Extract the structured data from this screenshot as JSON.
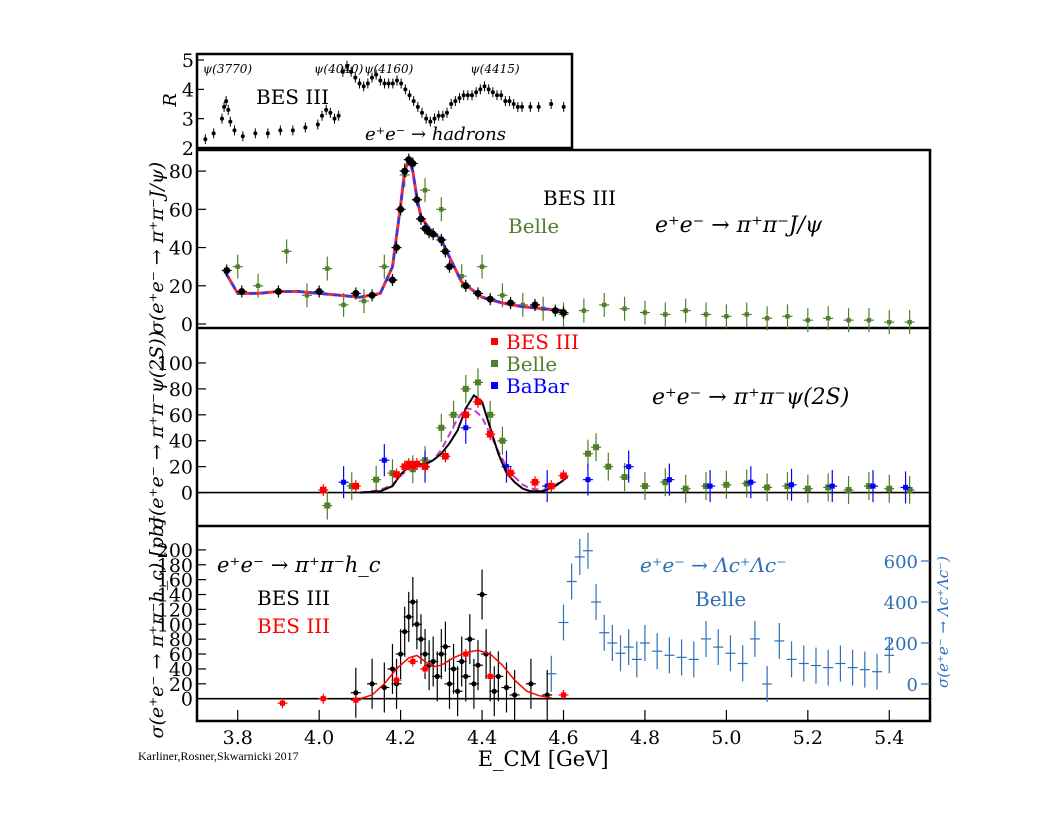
{
  "chart_data": [
    {
      "type": "scatter",
      "panel": "inset-R",
      "ylabel": "R",
      "ylim": [
        2,
        5
      ],
      "yticks": [
        2,
        3,
        4,
        5
      ],
      "xlim": [
        3.7,
        4.6
      ],
      "annotations": [
        "BES III",
        "e⁺e⁻ → hadrons"
      ],
      "resonances": [
        {
          "label": "ψ(3770)",
          "x": 3.773
        },
        {
          "label": "ψ(4040)",
          "x": 4.04
        },
        {
          "label": "ψ(4160)",
          "x": 4.16
        },
        {
          "label": "ψ(4415)",
          "x": 4.415
        }
      ],
      "series": [
        {
          "name": "BES III",
          "color": "#000000",
          "x": [
            3.72,
            3.74,
            3.76,
            3.765,
            3.77,
            3.775,
            3.78,
            3.79,
            3.81,
            3.84,
            3.87,
            3.9,
            3.93,
            3.96,
            3.99,
            4.0,
            4.01,
            4.02,
            4.03,
            4.04,
            4.05,
            4.06,
            4.07,
            4.08,
            4.09,
            4.1,
            4.11,
            4.12,
            4.13,
            4.14,
            4.15,
            4.16,
            4.17,
            4.18,
            4.19,
            4.2,
            4.21,
            4.22,
            4.23,
            4.24,
            4.25,
            4.26,
            4.27,
            4.28,
            4.29,
            4.3,
            4.31,
            4.32,
            4.33,
            4.34,
            4.35,
            4.36,
            4.37,
            4.38,
            4.39,
            4.4,
            4.41,
            4.42,
            4.43,
            4.44,
            4.45,
            4.46,
            4.47,
            4.48,
            4.5,
            4.52,
            4.55,
            4.58
          ],
          "y": [
            2.3,
            2.5,
            3.0,
            3.4,
            3.6,
            3.3,
            2.9,
            2.6,
            2.4,
            2.5,
            2.5,
            2.6,
            2.6,
            2.7,
            2.8,
            3.1,
            3.3,
            3.2,
            3.0,
            3.1,
            4.6,
            4.8,
            4.6,
            4.4,
            4.2,
            4.1,
            4.2,
            4.4,
            4.5,
            4.3,
            4.2,
            4.2,
            4.2,
            4.3,
            4.2,
            4.0,
            3.8,
            3.6,
            3.4,
            3.2,
            3.0,
            2.9,
            3.0,
            3.1,
            3.1,
            3.2,
            3.5,
            3.6,
            3.7,
            3.8,
            3.8,
            3.8,
            3.9,
            4.0,
            4.1,
            4.0,
            3.9,
            3.8,
            3.8,
            3.6,
            3.6,
            3.5,
            3.4,
            3.4,
            3.4,
            3.4,
            3.5,
            3.4
          ]
        }
      ]
    },
    {
      "type": "line",
      "panel": "top",
      "ylabel": "σ(e⁺e⁻ → π⁺π⁻J/ψ)",
      "ylim": [
        0,
        90
      ],
      "yticks": [
        0,
        20,
        40,
        60,
        80
      ],
      "xlim": [
        3.7,
        5.5
      ],
      "annotation": "e⁺e⁻ → π⁺π⁻J/ψ",
      "legend": [
        {
          "label": "BES III",
          "color": "#000000"
        },
        {
          "label": "Belle",
          "color": "#4f7f2a"
        }
      ],
      "series": [
        {
          "name": "BES III",
          "color": "#000000",
          "x": [
            3.773,
            3.81,
            3.9,
            4.0,
            4.09,
            4.13,
            4.18,
            4.19,
            4.2,
            4.21,
            4.22,
            4.23,
            4.24,
            4.25,
            4.26,
            4.27,
            4.28,
            4.3,
            4.31,
            4.32,
            4.36,
            4.39,
            4.42,
            4.47,
            4.53,
            4.58,
            4.6
          ],
          "y": [
            28,
            17,
            17,
            17,
            16,
            15,
            23,
            40,
            60,
            80,
            86,
            84,
            65,
            55,
            50,
            48,
            47,
            44,
            38,
            30,
            20,
            16,
            13,
            11,
            10,
            7,
            6
          ]
        },
        {
          "name": "Belle",
          "color": "#4f7f2a",
          "x": [
            3.8,
            3.85,
            3.92,
            3.97,
            4.02,
            4.06,
            4.11,
            4.16,
            4.21,
            4.26,
            4.3,
            4.35,
            4.4,
            4.45,
            4.5,
            4.55,
            4.6,
            4.65,
            4.7,
            4.75,
            4.8,
            4.85,
            4.9,
            4.95,
            5.0,
            5.05,
            5.1,
            5.15,
            5.2,
            5.25,
            5.3,
            5.35,
            5.4,
            5.45
          ],
          "y": [
            30,
            20,
            38,
            15,
            29,
            10,
            12,
            30,
            78,
            70,
            60,
            25,
            30,
            15,
            10,
            8,
            5,
            7,
            10,
            8,
            6,
            5,
            7,
            5,
            4,
            5,
            3,
            4,
            2,
            3,
            2,
            2,
            1,
            1
          ]
        },
        {
          "name": "Fit (red)",
          "color": "#ff2a2a",
          "x": [
            3.77,
            3.8,
            3.85,
            3.9,
            3.95,
            4.0,
            4.05,
            4.1,
            4.15,
            4.18,
            4.2,
            4.21,
            4.22,
            4.23,
            4.24,
            4.25,
            4.27,
            4.3,
            4.32,
            4.35,
            4.4,
            4.45,
            4.5,
            4.55,
            4.6
          ],
          "y": [
            27,
            16,
            16,
            17,
            17,
            16,
            15,
            14,
            16,
            30,
            62,
            80,
            86,
            80,
            66,
            56,
            50,
            44,
            35,
            22,
            14,
            11,
            9,
            8,
            7
          ]
        },
        {
          "name": "Fit (blue)",
          "color": "#2b3cf0",
          "x": [
            3.77,
            3.8,
            3.85,
            3.9,
            3.95,
            4.0,
            4.05,
            4.1,
            4.15,
            4.18,
            4.2,
            4.21,
            4.22,
            4.23,
            4.24,
            4.25,
            4.27,
            4.3,
            4.32,
            4.35,
            4.4,
            4.45,
            4.5,
            4.55,
            4.6
          ],
          "y": [
            27,
            16,
            16,
            17,
            17,
            16,
            15,
            14,
            16,
            30,
            62,
            80,
            86,
            80,
            66,
            56,
            50,
            44,
            35,
            22,
            14,
            11,
            9,
            8,
            7
          ]
        }
      ]
    },
    {
      "type": "line",
      "panel": "middle",
      "ylabel": "σ(e⁺e⁻ → π⁺π⁻ψ(2S))",
      "ylim": [
        -25,
        110
      ],
      "yticks": [
        0,
        20,
        40,
        60,
        80,
        100
      ],
      "xlim": [
        3.7,
        5.5
      ],
      "annotation": "e⁺e⁻ → π⁺π⁻ψ(2S)",
      "legend": [
        {
          "label": "BES III",
          "color": "#ff0000"
        },
        {
          "label": "Belle",
          "color": "#4f7f2a"
        },
        {
          "label": "BaBar",
          "color": "#0000ff"
        }
      ],
      "series": [
        {
          "name": "BES III",
          "color": "#ff0000",
          "x": [
            4.01,
            4.09,
            4.19,
            4.21,
            4.22,
            4.23,
            4.24,
            4.26,
            4.31,
            4.36,
            4.39,
            4.42,
            4.47,
            4.53,
            4.57,
            4.6
          ],
          "y": [
            2,
            5,
            14,
            20,
            22,
            21,
            22,
            20,
            28,
            60,
            70,
            45,
            15,
            8,
            5,
            13
          ]
        },
        {
          "name": "Belle",
          "color": "#4f7f2a",
          "x": [
            4.02,
            4.08,
            4.14,
            4.18,
            4.23,
            4.26,
            4.3,
            4.33,
            4.36,
            4.39,
            4.42,
            4.45,
            4.66,
            4.68,
            4.71,
            4.75,
            4.8,
            4.85,
            4.9,
            4.95,
            5.0,
            5.05,
            5.1,
            5.15,
            5.2,
            5.25,
            5.3,
            5.35,
            5.4,
            5.45
          ],
          "y": [
            -10,
            5,
            10,
            15,
            18,
            25,
            50,
            60,
            80,
            85,
            60,
            40,
            30,
            35,
            20,
            12,
            5,
            8,
            3,
            5,
            6,
            7,
            4,
            5,
            3,
            4,
            2,
            5,
            3,
            2
          ]
        },
        {
          "name": "BaBar",
          "color": "#0000ff",
          "x": [
            4.06,
            4.16,
            4.26,
            4.36,
            4.46,
            4.56,
            4.66,
            4.76,
            4.86,
            4.96,
            5.06,
            5.16,
            5.26,
            5.36,
            5.44
          ],
          "y": [
            8,
            25,
            20,
            50,
            20,
            5,
            10,
            20,
            10,
            5,
            8,
            6,
            5,
            5,
            4
          ]
        },
        {
          "name": "Fit (black)",
          "color": "#000000",
          "x": [
            4.1,
            4.15,
            4.18,
            4.2,
            4.22,
            4.24,
            4.26,
            4.28,
            4.3,
            4.32,
            4.34,
            4.36,
            4.38,
            4.4,
            4.42,
            4.44,
            4.46,
            4.48,
            4.5,
            4.52,
            4.55,
            4.58,
            4.61
          ],
          "y": [
            0,
            1,
            5,
            14,
            20,
            22,
            22,
            25,
            30,
            38,
            48,
            65,
            75,
            70,
            50,
            30,
            15,
            8,
            3,
            1,
            1,
            5,
            12
          ]
        },
        {
          "name": "Fit (magenta dashed)",
          "color": "#c838c8",
          "x": [
            4.1,
            4.15,
            4.18,
            4.2,
            4.22,
            4.24,
            4.26,
            4.28,
            4.3,
            4.32,
            4.34,
            4.36,
            4.38,
            4.4,
            4.42,
            4.44,
            4.46,
            4.48,
            4.5,
            4.52,
            4.55,
            4.58,
            4.61
          ],
          "y": [
            0,
            2,
            6,
            13,
            18,
            20,
            21,
            25,
            33,
            45,
            57,
            65,
            64,
            58,
            45,
            32,
            20,
            12,
            6,
            3,
            2,
            6,
            12
          ]
        }
      ]
    },
    {
      "type": "line",
      "panel": "bottom",
      "ylabel": "σ(e⁺e⁻ → π⁺π⁻h_c) [pb]",
      "ylim": [
        -30,
        220
      ],
      "yticks": [
        0,
        20,
        40,
        60,
        80,
        100,
        120,
        140,
        160,
        180,
        200
      ],
      "xlabel": "E_CM [GeV]",
      "xlim": [
        3.7,
        5.5
      ],
      "xticks": [
        3.8,
        4.0,
        4.2,
        4.4,
        4.6,
        4.8,
        5.0,
        5.2,
        5.4
      ],
      "annotations": [
        "e⁺e⁻ → π⁺π⁻h_c",
        "BES III",
        "BES III"
      ],
      "right_axis": {
        "label": "σ(e⁺e⁻ → Λc⁺Λc⁻)",
        "ticks": [
          0,
          200,
          400,
          600
        ],
        "color": "#2e6fb5"
      },
      "right_annotations": [
        "e⁺e⁻ → Λc⁺Λc⁻",
        "Belle"
      ],
      "series": [
        {
          "name": "BES III",
          "color": "#000000",
          "x": [
            4.09,
            4.13,
            4.16,
            4.18,
            4.19,
            4.2,
            4.21,
            4.22,
            4.23,
            4.24,
            4.25,
            4.26,
            4.27,
            4.28,
            4.29,
            4.3,
            4.31,
            4.32,
            4.33,
            4.34,
            4.35,
            4.36,
            4.37,
            4.38,
            4.39,
            4.4,
            4.41,
            4.42,
            4.43,
            4.44,
            4.46,
            4.48,
            4.52,
            4.56
          ],
          "y": [
            8,
            20,
            15,
            40,
            20,
            60,
            90,
            110,
            130,
            100,
            80,
            60,
            45,
            50,
            30,
            60,
            70,
            20,
            40,
            10,
            50,
            30,
            80,
            20,
            45,
            140,
            60,
            30,
            10,
            30,
            15,
            5,
            20,
            5
          ]
        },
        {
          "name": "BES III",
          "color": "#ff0000",
          "x": [
            3.91,
            4.01,
            4.09,
            4.19,
            4.23,
            4.26,
            4.36,
            4.42,
            4.6
          ],
          "y": [
            -6,
            0,
            -2,
            25,
            50,
            40,
            60,
            30,
            5
          ]
        },
        {
          "name": "Belle",
          "color": "#2e6fb5",
          "x": [
            4.57,
            4.6,
            4.62,
            4.64,
            4.66,
            4.68,
            4.7,
            4.72,
            4.74,
            4.76,
            4.78,
            4.8,
            4.83,
            4.86,
            4.89,
            4.92,
            4.95,
            4.98,
            5.01,
            5.04,
            5.07,
            5.1,
            5.13,
            5.16,
            5.19,
            5.22,
            5.25,
            5.28,
            5.31,
            5.34,
            5.37,
            5.4
          ],
          "y": [
            50,
            300,
            500,
            620,
            650,
            400,
            250,
            200,
            150,
            180,
            120,
            200,
            160,
            140,
            130,
            120,
            220,
            180,
            150,
            100,
            220,
            0,
            210,
            120,
            100,
            90,
            80,
            100,
            80,
            70,
            60,
            140
          ]
        },
        {
          "name": "Fit (red)",
          "color": "#ff0000",
          "x": [
            4.1,
            4.13,
            4.16,
            4.19,
            4.22,
            4.24,
            4.26,
            4.28,
            4.3,
            4.33,
            4.36,
            4.39,
            4.42,
            4.45,
            4.48,
            4.51,
            4.54,
            4.57
          ],
          "y": [
            0,
            5,
            20,
            40,
            55,
            58,
            50,
            43,
            45,
            55,
            62,
            65,
            60,
            45,
            25,
            10,
            4,
            1
          ]
        }
      ]
    }
  ],
  "credit": "Karliner,Rosner,Skwarnicki 2017"
}
